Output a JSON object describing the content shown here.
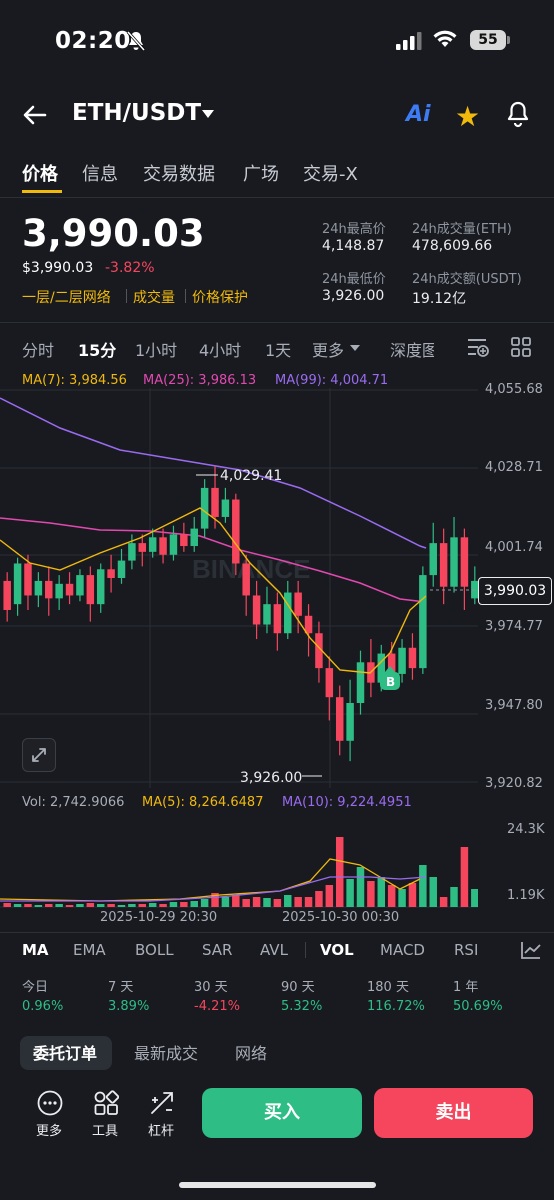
{
  "status_bar": {
    "time": "02:20",
    "battery": "55"
  },
  "header": {
    "pair": "ETH/USDT",
    "ai_label": "Ai"
  },
  "tabs": [
    "价格",
    "信息",
    "交易数据",
    "广场",
    "交易-X"
  ],
  "price": {
    "last": "3,990.03",
    "usd": "$3,990.03",
    "change": "-3.82%",
    "links": [
      "一层/二层网络",
      "成交量",
      "价格保护"
    ]
  },
  "stats": {
    "high_label": "24h最高价",
    "high_value": "4,148.87",
    "vol_eth_label": "24h成交量(ETH)",
    "vol_eth_value": "478,609.66",
    "low_label": "24h最低价",
    "low_value": "3,926.00",
    "vol_usdt_label": "24h成交额(USDT)",
    "vol_usdt_value": "19.12亿"
  },
  "timeframes": [
    "分时",
    "15分",
    "1小时",
    "4小时",
    "1天",
    "更多",
    "深度图"
  ],
  "chart": {
    "ma7": "MA(7): 3,984.56",
    "ma25": "MA(25): 3,986.13",
    "ma99": "MA(99): 4,004.71",
    "y_ticks": [
      "4,055.68",
      "4,028.71",
      "4,001.74",
      "3,974.77",
      "3,947.80",
      "3,920.82"
    ],
    "current_price_tag": "3,990.03",
    "high_label": "4,029.41",
    "low_label": "3,926.00",
    "buy_marker": "B",
    "watermark": "BINANCE",
    "vol_text": "Vol: 2,742.9066",
    "ma5_text": "MA(5): 8,264.6487",
    "ma10_text": "MA(10): 9,224.4951",
    "vol_ticks": [
      "24.3K",
      "1.19K"
    ],
    "x_ticks": [
      "2025-10-29 20:30",
      "2025-10-30 00:30"
    ],
    "colors": {
      "up": "#2ebd85",
      "down": "#f6465d",
      "ma7": "#f0b90b",
      "ma25": "#e249b0",
      "ma99": "#9a6bf0"
    }
  },
  "indicators": [
    "MA",
    "EMA",
    "BOLL",
    "SAR",
    "AVL",
    "VOL",
    "MACD",
    "RSI"
  ],
  "performance": {
    "labels": [
      "今日",
      "7 天",
      "30 天",
      "90 天",
      "180 天",
      "1 年"
    ],
    "values": [
      "0.96%",
      "3.89%",
      "-4.21%",
      "5.32%",
      "116.72%",
      "50.69%"
    ]
  },
  "order_tabs": [
    "委托订单",
    "最新成交",
    "网络"
  ],
  "bottom": {
    "more": "更多",
    "tools": "工具",
    "leverage": "杠杆",
    "buy": "买入",
    "sell": "卖出"
  }
}
